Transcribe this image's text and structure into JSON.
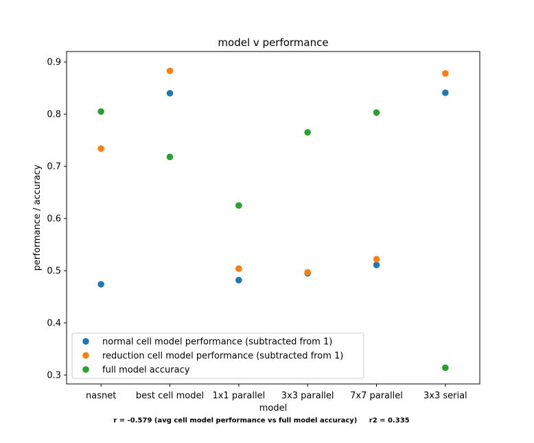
{
  "chart_data": {
    "type": "scatter",
    "title": "model v performance",
    "xlabel": "model",
    "ylabel": "performance / accuracy",
    "categories": [
      "nasnet",
      "best cell model",
      "1x1 parallel",
      "3x3 parallel",
      "7x7 parallel",
      "3x3 serial"
    ],
    "ylim": [
      0.283,
      0.92
    ],
    "yticks": [
      0.3,
      0.4,
      0.5,
      0.6,
      0.7,
      0.8,
      0.9
    ],
    "ytick_labels": [
      "0.3",
      "0.4",
      "0.5",
      "0.6",
      "0.7",
      "0.8",
      "0.9"
    ],
    "grid": false,
    "legend_position": "lower-left",
    "series": [
      {
        "name": "normal cell model performance (subtracted from 1)",
        "color": "#1f77b4",
        "values": [
          0.474,
          0.84,
          0.482,
          0.495,
          0.511,
          0.841
        ]
      },
      {
        "name": "reduction cell model performance (subtracted from 1)",
        "color": "#ff7f0e",
        "values": [
          0.734,
          0.883,
          0.504,
          0.497,
          0.522,
          0.878
        ]
      },
      {
        "name": "full model accuracy",
        "color": "#2ca02c",
        "values": [
          0.805,
          0.718,
          0.625,
          0.765,
          0.803,
          0.314
        ]
      }
    ],
    "footnote": "r = -0.579 (avg cell model performance vs full model accuracy)     r2 = 0.335"
  }
}
